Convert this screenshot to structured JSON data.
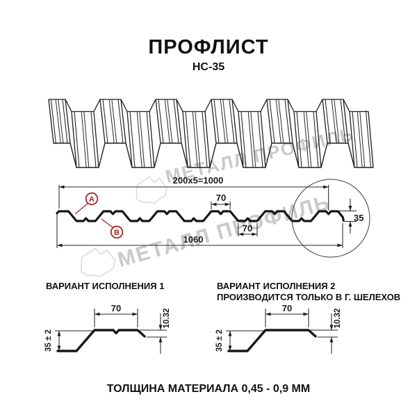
{
  "title": "ПРОФЛИСТ",
  "subtitle": "НС-35",
  "watermark": {
    "text": "МЕТАЛЛ ПРОФИЛЬ",
    "color": "#c9c9c9",
    "logo_name": "metall-profil-logo"
  },
  "colors": {
    "line": "#1c1c1c",
    "thin": "#262626",
    "red": "#a82323",
    "watermark": "#c9c9c9"
  },
  "section_profile": {
    "dim_total_top": "200x5=1000",
    "dim_crest_width": "70",
    "dim_valley_width": "70",
    "dim_overall_width": "1060",
    "dim_height": "35",
    "marker_a": "А",
    "marker_b": "В"
  },
  "variants": [
    {
      "title_lines": [
        "ВАРИАНТ ИСПОЛНЕНИЯ 1"
      ],
      "dim_top": "70",
      "dim_height": "35 ± 2",
      "dim_lip": "10.32"
    },
    {
      "title_lines": [
        "ВАРИАНТ ИСПОЛНЕНИЯ 2",
        "ПРОИЗВОДИТСЯ ТОЛЬКО В Г. ШЕЛЕХОВ"
      ],
      "dim_top": "70",
      "dim_height": "35 ± 2",
      "dim_lip": "10.32"
    }
  ],
  "footer": "ТОЛЩИНА МАТЕРИАЛА 0,45 - 0,9 ММ"
}
